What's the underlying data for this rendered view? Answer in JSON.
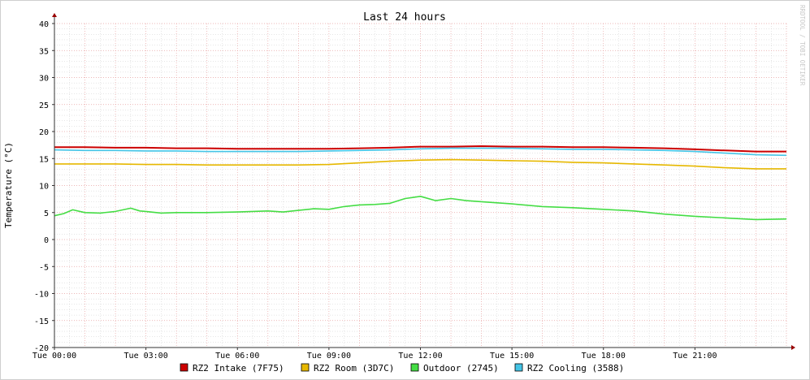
{
  "chart_data": {
    "type": "line",
    "title": "Last 24 hours",
    "ylabel": "Temperature (°C)",
    "xlabel": "",
    "watermark": "RRDTOOL / TOBI OETIKER",
    "grid": true,
    "legend_position": "bottom",
    "ylim": [
      -20,
      40
    ],
    "yticks": [
      -20,
      -15,
      -10,
      -5,
      0,
      5,
      10,
      15,
      20,
      25,
      30,
      35,
      40
    ],
    "xlim": [
      0,
      24
    ],
    "x_tick_hours": [
      0,
      3,
      6,
      9,
      12,
      15,
      18,
      21
    ],
    "x_tick_labels": [
      "Tue 00:00",
      "Tue 03:00",
      "Tue 06:00",
      "Tue 09:00",
      "Tue 12:00",
      "Tue 15:00",
      "Tue 18:00",
      "Tue 21:00"
    ],
    "x_unit": "hours since Tue 00:00",
    "colors": {
      "background": "#ffffff",
      "grid_major": "#e8a0a0",
      "grid_minor": "#cccccc",
      "axis": "#333333",
      "arrow": "#990000"
    },
    "series": [
      {
        "name": "RZ2 Intake (7F75)",
        "color": "#cc0000",
        "x": [
          0,
          1,
          2,
          3,
          4,
          5,
          6,
          7,
          8,
          9,
          10,
          11,
          12,
          13,
          14,
          15,
          16,
          17,
          18,
          19,
          20,
          21,
          22,
          23,
          24
        ],
        "values": [
          17.1,
          17.1,
          17.0,
          17.0,
          16.9,
          16.9,
          16.8,
          16.8,
          16.8,
          16.8,
          16.9,
          17.0,
          17.2,
          17.2,
          17.3,
          17.2,
          17.2,
          17.1,
          17.1,
          17.0,
          16.9,
          16.7,
          16.5,
          16.3,
          16.3
        ]
      },
      {
        "name": "RZ2 Room (3D7C)",
        "color": "#e6b800",
        "x": [
          0,
          1,
          2,
          3,
          4,
          5,
          6,
          7,
          8,
          9,
          10,
          11,
          12,
          13,
          14,
          15,
          16,
          17,
          18,
          19,
          20,
          21,
          22,
          23,
          24
        ],
        "values": [
          14.0,
          14.0,
          14.0,
          13.9,
          13.9,
          13.8,
          13.8,
          13.8,
          13.8,
          13.9,
          14.2,
          14.5,
          14.7,
          14.8,
          14.7,
          14.6,
          14.5,
          14.3,
          14.2,
          14.0,
          13.8,
          13.6,
          13.3,
          13.1,
          13.1
        ]
      },
      {
        "name": "Outdoor (2745)",
        "color": "#44dd44",
        "x": [
          0,
          0.3,
          0.6,
          1,
          1.5,
          2,
          2.5,
          2.8,
          3,
          3.5,
          4,
          5,
          6,
          7,
          7.5,
          8,
          8.5,
          9,
          9.5,
          10,
          10.5,
          11,
          11.5,
          12,
          12.5,
          13,
          13.5,
          14,
          15,
          16,
          17,
          18,
          19,
          20,
          21,
          22,
          23,
          24
        ],
        "values": [
          4.4,
          4.8,
          5.5,
          5.0,
          4.9,
          5.2,
          5.8,
          5.3,
          5.2,
          4.9,
          5.0,
          5.0,
          5.1,
          5.3,
          5.1,
          5.4,
          5.7,
          5.6,
          6.1,
          6.4,
          6.5,
          6.7,
          7.6,
          8.0,
          7.2,
          7.6,
          7.2,
          7.0,
          6.6,
          6.1,
          5.9,
          5.6,
          5.3,
          4.7,
          4.3,
          4.0,
          3.7,
          3.8
        ]
      },
      {
        "name": "RZ2 Cooling (3588)",
        "color": "#44c4e6",
        "x": [
          0,
          1,
          2,
          3,
          4,
          5,
          6,
          7,
          8,
          9,
          10,
          11,
          12,
          13,
          14,
          15,
          16,
          17,
          18,
          19,
          20,
          21,
          22,
          23,
          24
        ],
        "values": [
          16.6,
          16.5,
          16.5,
          16.4,
          16.4,
          16.3,
          16.3,
          16.3,
          16.3,
          16.4,
          16.5,
          16.6,
          16.8,
          16.9,
          16.9,
          16.9,
          16.8,
          16.7,
          16.7,
          16.6,
          16.5,
          16.3,
          16.0,
          15.7,
          15.6
        ]
      }
    ]
  }
}
